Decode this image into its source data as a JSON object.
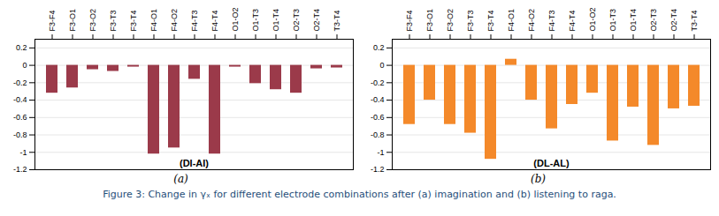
{
  "chart_data": [
    {
      "type": "bar",
      "subtitle": "(a)",
      "annotation": "(DI-AI)",
      "categories": [
        "F3-F4",
        "F3-O1",
        "F3-O2",
        "F3-T3",
        "F3-T4",
        "F4-O1",
        "F4-O2",
        "F4-T3",
        "F4-T4",
        "O1-O2",
        "O1-T3",
        "O1-T4",
        "O2-T3",
        "O2-T4",
        "T3-T4"
      ],
      "values": [
        -0.32,
        -0.26,
        -0.05,
        -0.07,
        -0.02,
        -1.02,
        -0.95,
        -0.16,
        -1.02,
        -0.02,
        -0.21,
        -0.28,
        -0.32,
        -0.04,
        -0.03
      ],
      "color": "#9B3A4A",
      "ylim": [
        -1.2,
        0.3
      ],
      "yticks": [
        -1.2,
        -1.0,
        -0.8,
        -0.6,
        -0.4,
        -0.2,
        0,
        0.2
      ],
      "grid": true
    },
    {
      "type": "bar",
      "subtitle": "(b)",
      "annotation": "(DL-AL)",
      "categories": [
        "F3-F4",
        "F3-O1",
        "F3-O2",
        "F3-T3",
        "F3-T4",
        "F4-O1",
        "F4-O2",
        "F4-T3",
        "F4-T4",
        "O1-O2",
        "O1-T3",
        "O1-T4",
        "O2-T3",
        "O2-T4",
        "T3-T4"
      ],
      "values": [
        -0.68,
        -0.4,
        -0.68,
        -0.78,
        -1.08,
        0.07,
        -0.4,
        -0.73,
        -0.45,
        -0.32,
        -0.87,
        -0.48,
        -0.92,
        -0.5,
        -0.47
      ],
      "color": "#F4892A",
      "ylim": [
        -1.2,
        0.3
      ],
      "yticks": [
        -1.2,
        -1.0,
        -0.8,
        -0.6,
        -0.4,
        -0.2,
        0,
        0.2
      ],
      "grid": true
    }
  ],
  "caption": {
    "text": "Figure 3: Change in γₓ for different electrode combinations after (a) imagination and (b) listening to raga.",
    "color": "#1F4E79"
  }
}
